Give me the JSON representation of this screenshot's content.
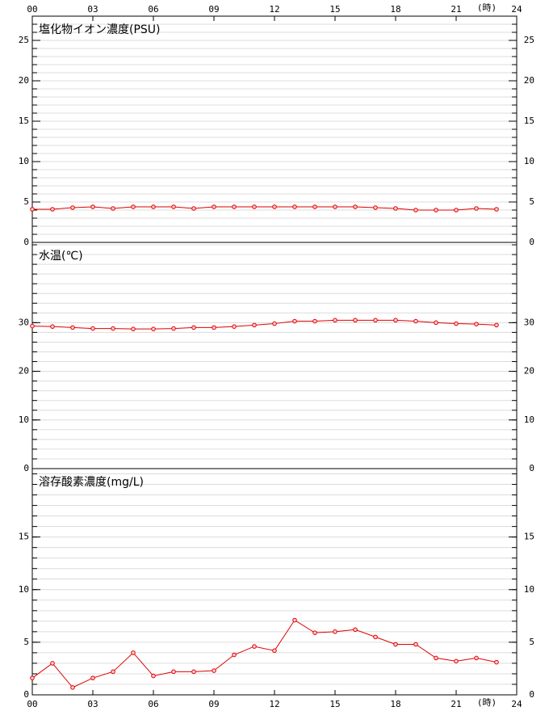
{
  "chart_data": [
    {
      "type": "line",
      "title": "塩化物イオン濃度(PSU)",
      "color": "#e00000",
      "x": [
        0,
        1,
        2,
        3,
        4,
        5,
        6,
        7,
        8,
        9,
        10,
        11,
        12,
        13,
        14,
        15,
        16,
        17,
        18,
        19,
        20,
        21,
        22,
        23
      ],
      "values": [
        4.1,
        4.1,
        4.3,
        4.4,
        4.2,
        4.4,
        4.4,
        4.4,
        4.2,
        4.4,
        4.4,
        4.4,
        4.4,
        4.4,
        4.4,
        4.4,
        4.4,
        4.3,
        4.2,
        4.0,
        4.0,
        4.0,
        4.2,
        4.1
      ],
      "xlim": [
        0,
        24
      ],
      "xticks": [
        {
          "value": 0,
          "label": "00"
        },
        {
          "value": 3,
          "label": "03"
        },
        {
          "value": 6,
          "label": "06"
        },
        {
          "value": 9,
          "label": "09"
        },
        12,
        15,
        18,
        21,
        24
      ],
      "x_unit_label": "(時)",
      "ylim": [
        0,
        28
      ],
      "yticks": [
        0,
        5,
        10,
        15,
        20,
        25
      ],
      "minor_tick_step": 1,
      "grid": true
    },
    {
      "type": "line",
      "title": "水温(℃)",
      "color": "#e00000",
      "x": [
        0,
        1,
        2,
        3,
        4,
        5,
        6,
        7,
        8,
        9,
        10,
        11,
        12,
        13,
        14,
        15,
        16,
        17,
        18,
        19,
        20,
        21,
        22,
        23
      ],
      "values": [
        29.3,
        29.2,
        29.0,
        28.8,
        28.8,
        28.7,
        28.7,
        28.8,
        29.0,
        29.0,
        29.2,
        29.5,
        29.8,
        30.3,
        30.3,
        30.5,
        30.5,
        30.5,
        30.5,
        30.3,
        30.0,
        29.8,
        29.7,
        29.5
      ],
      "xlim": [
        0,
        24
      ],
      "ylim": [
        0,
        46.5
      ],
      "yticks": [
        0,
        10,
        20,
        30
      ],
      "minor_tick_step": 2,
      "grid": true
    },
    {
      "type": "line",
      "title": "溶存酸素濃度(mg/L)",
      "color": "#e00000",
      "x": [
        0,
        1,
        2,
        3,
        4,
        5,
        6,
        7,
        8,
        9,
        10,
        11,
        12,
        13,
        14,
        15,
        16,
        17,
        18,
        19,
        20,
        21,
        22,
        23
      ],
      "values": [
        1.6,
        3.0,
        0.7,
        1.6,
        2.2,
        4.0,
        1.8,
        2.2,
        2.2,
        2.3,
        3.8,
        4.6,
        4.2,
        7.1,
        5.9,
        6.0,
        6.2,
        5.5,
        4.8,
        4.8,
        3.5,
        3.2,
        3.5,
        3.1
      ],
      "xlim": [
        0,
        24
      ],
      "xticks": [
        {
          "value": 0,
          "label": "00"
        },
        {
          "value": 3,
          "label": "03"
        },
        {
          "value": 6,
          "label": "06"
        },
        {
          "value": 9,
          "label": "09"
        },
        12,
        15,
        18,
        21,
        24
      ],
      "x_unit_label": "(時)",
      "ylim": [
        0,
        21.5
      ],
      "yticks": [
        0,
        5,
        10,
        15
      ],
      "minor_tick_step": 1,
      "grid": true
    }
  ]
}
